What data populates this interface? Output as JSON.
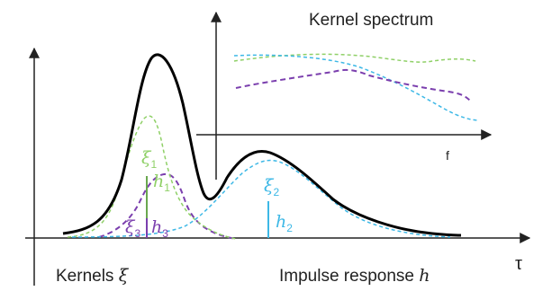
{
  "labels": {
    "kernel_spectrum": "Kernel spectrum",
    "f_axis": "f",
    "tau_axis": "τ",
    "kernels_prefix": "Kernels ",
    "kernels_symbol": "ξ",
    "impulse_prefix": "Impulse response ",
    "impulse_symbol": "h",
    "xi_symbol": "ξ",
    "h_symbol": "h",
    "sub_1": "1",
    "sub_2": "2",
    "sub_3": "3"
  },
  "colors": {
    "axis": "#222222",
    "response": "#000000",
    "kernel_1": "#8fd067",
    "kernel_2": "#3db8e6",
    "kernel_3": "#7b3fae",
    "marker_1": "#6aa84f",
    "marker_2": "#3db8e6",
    "marker_3": "#7b3fae"
  }
}
